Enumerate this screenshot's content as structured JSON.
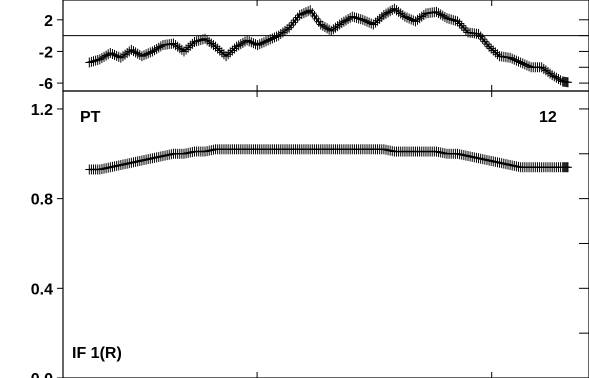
{
  "chart_data": [
    {
      "type": "line",
      "panel": "top",
      "ylim": [
        -7,
        4.5
      ],
      "yticks": [
        2,
        -2,
        -6
      ],
      "ytick_minor": [
        0,
        -4
      ],
      "reference_line": 0,
      "xlim": [
        0,
        1
      ],
      "xticks": [
        0.369,
        0.815
      ],
      "series": [
        {
          "marker": "plus",
          "x": [
            0.05,
            0.07,
            0.09,
            0.11,
            0.13,
            0.15,
            0.17,
            0.19,
            0.21,
            0.23,
            0.25,
            0.27,
            0.29,
            0.31,
            0.33,
            0.35,
            0.37,
            0.39,
            0.41,
            0.43,
            0.45,
            0.47,
            0.49,
            0.51,
            0.53,
            0.55,
            0.57,
            0.59,
            0.61,
            0.63,
            0.65,
            0.67,
            0.69,
            0.71,
            0.73,
            0.75,
            0.77,
            0.79,
            0.81,
            0.83,
            0.85,
            0.87,
            0.89,
            0.91,
            0.93,
            0.95,
            0.96
          ],
          "y": [
            -3.4,
            -3.0,
            -2.2,
            -2.8,
            -1.8,
            -2.6,
            -2.0,
            -1.2,
            -1.0,
            -2.0,
            -0.8,
            -0.4,
            -1.4,
            -2.6,
            -1.4,
            -0.6,
            -1.2,
            -0.6,
            0.0,
            1.0,
            2.6,
            3.2,
            1.4,
            0.6,
            1.6,
            2.4,
            2.0,
            1.4,
            2.6,
            3.4,
            2.4,
            1.8,
            2.8,
            3.0,
            2.2,
            1.8,
            0.4,
            0.2,
            -1.4,
            -2.6,
            -2.8,
            -3.4,
            -4.0,
            -4.0,
            -5.0,
            -5.8,
            -5.9
          ]
        }
      ]
    },
    {
      "type": "line",
      "panel": "bottom",
      "ylim": [
        0,
        1.28
      ],
      "yticks": [
        1.2,
        0.8,
        0.4,
        0.0
      ],
      "ytick_labels": [
        "1.2",
        "0.8",
        "0.4",
        "0.0"
      ],
      "ytick_minor": [
        1.0,
        0.6,
        0.2
      ],
      "xlim": [
        0,
        1
      ],
      "xticks": [
        0.369,
        0.815
      ],
      "series": [
        {
          "marker": "plus",
          "x": [
            0.05,
            0.07,
            0.09,
            0.11,
            0.13,
            0.15,
            0.17,
            0.19,
            0.21,
            0.23,
            0.25,
            0.27,
            0.29,
            0.31,
            0.33,
            0.35,
            0.37,
            0.39,
            0.41,
            0.43,
            0.45,
            0.47,
            0.49,
            0.51,
            0.53,
            0.55,
            0.57,
            0.59,
            0.61,
            0.63,
            0.65,
            0.67,
            0.69,
            0.71,
            0.73,
            0.75,
            0.77,
            0.79,
            0.81,
            0.83,
            0.85,
            0.87,
            0.89,
            0.91,
            0.93,
            0.95,
            0.96
          ],
          "y": [
            0.93,
            0.93,
            0.94,
            0.95,
            0.96,
            0.97,
            0.98,
            0.99,
            1.0,
            1.0,
            1.01,
            1.01,
            1.02,
            1.02,
            1.02,
            1.02,
            1.02,
            1.02,
            1.02,
            1.02,
            1.02,
            1.02,
            1.02,
            1.02,
            1.02,
            1.02,
            1.02,
            1.02,
            1.02,
            1.01,
            1.01,
            1.01,
            1.01,
            1.01,
            1.0,
            1.0,
            0.99,
            0.98,
            0.97,
            0.96,
            0.95,
            0.94,
            0.94,
            0.94,
            0.94,
            0.94,
            0.94
          ]
        }
      ],
      "annotations": {
        "top_left": "PT",
        "top_right": "12",
        "bottom_left": "IF 1(R)"
      }
    }
  ]
}
